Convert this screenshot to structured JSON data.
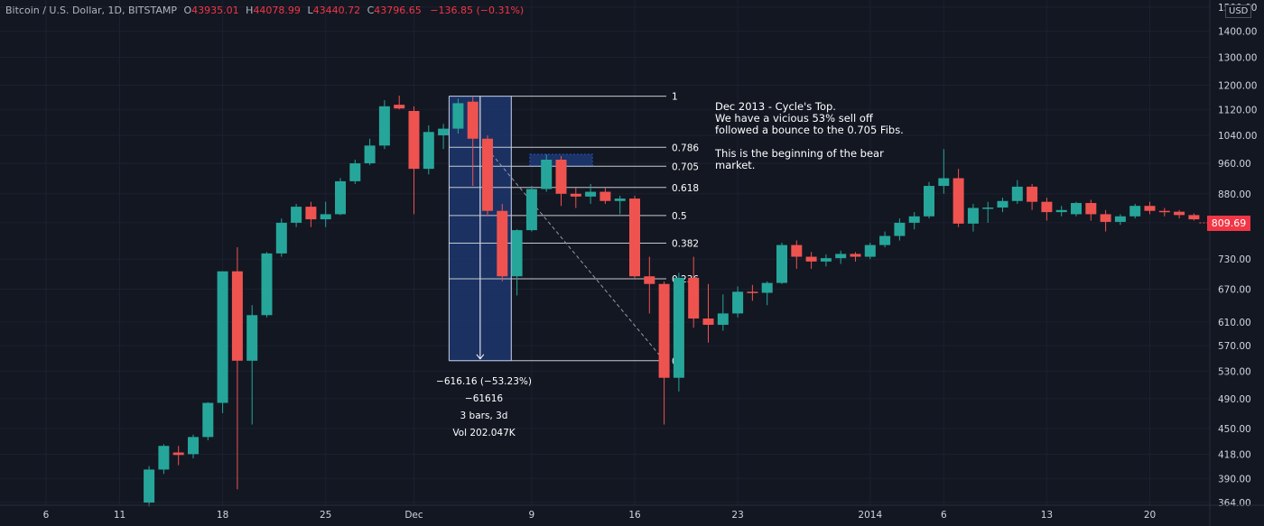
{
  "header": {
    "symbol": "Bitcoin / U.S. Dollar, 1D, BITSTAMP",
    "open_label": "O",
    "open": "43935.01",
    "high_label": "H",
    "high": "44078.99",
    "low_label": "L",
    "low": "43440.72",
    "close_label": "C",
    "close": "43796.65",
    "change": "−136.85 (−0.31%)"
  },
  "currency_badge": "USD",
  "last_price_label": "809.69",
  "annotation": "Dec 2013 - Cycle's Top.\nWe have a vicious 53% sell off\nfollowed a bounce to the 0.705 Fibs.\n\nThis is the beginning of the bear\nmarket.",
  "measurement": {
    "change": "−616.16 (−53.23%) −61616",
    "bars": "3 bars, 3d",
    "volume": "Vol 202.047K"
  },
  "colors": {
    "background": "#131722",
    "up": "#26a69a",
    "down": "#ef5350",
    "fib_line": "#c8cacf",
    "measure_fill": "#1e3a78",
    "grid": "#1c2030"
  },
  "chart_data": {
    "type": "candlestick",
    "y_scale": "log",
    "ylim": [
      364,
      1500
    ],
    "y_ticks": [
      364,
      390,
      418,
      450,
      490,
      530,
      570,
      610,
      670,
      730,
      810,
      880,
      960,
      1040,
      1120,
      1200,
      1300,
      1400,
      1500
    ],
    "y_tick_labels": [
      "364.00",
      "390.00",
      "418.00",
      "450.00",
      "490.00",
      "530.00",
      "570.00",
      "610.00",
      "670.00",
      "730.00",
      "810.00",
      "880.00",
      "960.00",
      "1040.00",
      "1120.00",
      "1200.00",
      "1300.00",
      "1400.00",
      "1500.00"
    ],
    "x_ticks": [
      {
        "label": "6",
        "date": "2013-11-06"
      },
      {
        "label": "11",
        "date": "2013-11-11"
      },
      {
        "label": "18",
        "date": "2013-11-18"
      },
      {
        "label": "25",
        "date": "2013-11-25"
      },
      {
        "label": "Dec",
        "date": "2013-12-01"
      },
      {
        "label": "9",
        "date": "2013-12-09"
      },
      {
        "label": "16",
        "date": "2013-12-16"
      },
      {
        "label": "23",
        "date": "2013-12-23"
      },
      {
        "label": "2014",
        "date": "2014-01-01"
      },
      {
        "label": "6",
        "date": "2014-01-06"
      },
      {
        "label": "13",
        "date": "2014-01-13"
      },
      {
        "label": "20",
        "date": "2014-01-20"
      }
    ],
    "candles": [
      {
        "date": "2013-11-13",
        "o": 364,
        "h": 404,
        "l": 360,
        "c": 400
      },
      {
        "date": "2013-11-14",
        "o": 400,
        "h": 430,
        "l": 395,
        "c": 428
      },
      {
        "date": "2013-11-15",
        "o": 420,
        "h": 428,
        "l": 405,
        "c": 417
      },
      {
        "date": "2013-11-16",
        "o": 418,
        "h": 442,
        "l": 413,
        "c": 439
      },
      {
        "date": "2013-11-17",
        "o": 439,
        "h": 485,
        "l": 435,
        "c": 484
      },
      {
        "date": "2013-11-18",
        "o": 484,
        "h": 705,
        "l": 470,
        "c": 705
      },
      {
        "date": "2013-11-19",
        "o": 705,
        "h": 755,
        "l": 378,
        "c": 546
      },
      {
        "date": "2013-11-20",
        "o": 546,
        "h": 640,
        "l": 455,
        "c": 622
      },
      {
        "date": "2013-11-21",
        "o": 622,
        "h": 745,
        "l": 618,
        "c": 742
      },
      {
        "date": "2013-11-22",
        "o": 742,
        "h": 820,
        "l": 735,
        "c": 810
      },
      {
        "date": "2013-11-23",
        "o": 810,
        "h": 855,
        "l": 800,
        "c": 848
      },
      {
        "date": "2013-11-24",
        "o": 848,
        "h": 860,
        "l": 800,
        "c": 818
      },
      {
        "date": "2013-11-25",
        "o": 818,
        "h": 860,
        "l": 800,
        "c": 830
      },
      {
        "date": "2013-11-26",
        "o": 830,
        "h": 920,
        "l": 828,
        "c": 912
      },
      {
        "date": "2013-11-27",
        "o": 912,
        "h": 970,
        "l": 905,
        "c": 960
      },
      {
        "date": "2013-11-28",
        "o": 960,
        "h": 1030,
        "l": 955,
        "c": 1010
      },
      {
        "date": "2013-11-29",
        "o": 1010,
        "h": 1150,
        "l": 1000,
        "c": 1130
      },
      {
        "date": "2013-11-30",
        "o": 1135,
        "h": 1165,
        "l": 1120,
        "c": 1123
      },
      {
        "date": "2013-12-01",
        "o": 1115,
        "h": 1130,
        "l": 830,
        "c": 945
      },
      {
        "date": "2013-12-02",
        "o": 945,
        "h": 1070,
        "l": 930,
        "c": 1050
      },
      {
        "date": "2013-12-03",
        "o": 1040,
        "h": 1075,
        "l": 1000,
        "c": 1060
      },
      {
        "date": "2013-12-04",
        "o": 1060,
        "h": 1155,
        "l": 1045,
        "c": 1140
      },
      {
        "date": "2013-12-05",
        "o": 1145,
        "h": 1160,
        "l": 900,
        "c": 1030
      },
      {
        "date": "2013-12-06",
        "o": 1030,
        "h": 1040,
        "l": 825,
        "c": 838
      },
      {
        "date": "2013-12-07",
        "o": 838,
        "h": 855,
        "l": 685,
        "c": 695
      },
      {
        "date": "2013-12-08",
        "o": 695,
        "h": 795,
        "l": 658,
        "c": 793
      },
      {
        "date": "2013-12-09",
        "o": 793,
        "h": 900,
        "l": 790,
        "c": 892
      },
      {
        "date": "2013-12-10",
        "o": 892,
        "h": 985,
        "l": 885,
        "c": 970
      },
      {
        "date": "2013-12-11",
        "o": 970,
        "h": 980,
        "l": 850,
        "c": 880
      },
      {
        "date": "2013-12-12",
        "o": 880,
        "h": 895,
        "l": 845,
        "c": 873
      },
      {
        "date": "2013-12-13",
        "o": 873,
        "h": 905,
        "l": 855,
        "c": 885
      },
      {
        "date": "2013-12-14",
        "o": 885,
        "h": 895,
        "l": 855,
        "c": 862
      },
      {
        "date": "2013-12-15",
        "o": 862,
        "h": 875,
        "l": 830,
        "c": 868
      },
      {
        "date": "2013-12-16",
        "o": 868,
        "h": 875,
        "l": 690,
        "c": 695
      },
      {
        "date": "2013-12-17",
        "o": 695,
        "h": 735,
        "l": 625,
        "c": 680
      },
      {
        "date": "2013-12-18",
        "o": 680,
        "h": 685,
        "l": 455,
        "c": 520
      },
      {
        "date": "2013-12-19",
        "o": 520,
        "h": 702,
        "l": 500,
        "c": 692
      },
      {
        "date": "2013-12-20",
        "o": 692,
        "h": 735,
        "l": 600,
        "c": 616
      },
      {
        "date": "2013-12-21",
        "o": 616,
        "h": 680,
        "l": 575,
        "c": 605
      },
      {
        "date": "2013-12-22",
        "o": 605,
        "h": 660,
        "l": 595,
        "c": 625
      },
      {
        "date": "2013-12-23",
        "o": 625,
        "h": 675,
        "l": 618,
        "c": 665
      },
      {
        "date": "2013-12-24",
        "o": 665,
        "h": 678,
        "l": 648,
        "c": 663
      },
      {
        "date": "2013-12-25",
        "o": 663,
        "h": 685,
        "l": 640,
        "c": 682
      },
      {
        "date": "2013-12-26",
        "o": 682,
        "h": 765,
        "l": 680,
        "c": 760
      },
      {
        "date": "2013-12-27",
        "o": 760,
        "h": 770,
        "l": 710,
        "c": 735
      },
      {
        "date": "2013-12-28",
        "o": 735,
        "h": 745,
        "l": 710,
        "c": 725
      },
      {
        "date": "2013-12-29",
        "o": 725,
        "h": 740,
        "l": 715,
        "c": 732
      },
      {
        "date": "2013-12-30",
        "o": 732,
        "h": 748,
        "l": 720,
        "c": 741
      },
      {
        "date": "2013-12-31",
        "o": 741,
        "h": 745,
        "l": 725,
        "c": 735
      },
      {
        "date": "2014-01-01",
        "o": 735,
        "h": 765,
        "l": 730,
        "c": 760
      },
      {
        "date": "2014-01-02",
        "o": 760,
        "h": 790,
        "l": 755,
        "c": 780
      },
      {
        "date": "2014-01-03",
        "o": 780,
        "h": 820,
        "l": 770,
        "c": 810
      },
      {
        "date": "2014-01-04",
        "o": 810,
        "h": 835,
        "l": 795,
        "c": 825
      },
      {
        "date": "2014-01-05",
        "o": 825,
        "h": 910,
        "l": 820,
        "c": 900
      },
      {
        "date": "2014-01-06",
        "o": 900,
        "h": 1000,
        "l": 880,
        "c": 920
      },
      {
        "date": "2014-01-07",
        "o": 920,
        "h": 945,
        "l": 800,
        "c": 808
      },
      {
        "date": "2014-01-08",
        "o": 808,
        "h": 855,
        "l": 790,
        "c": 845
      },
      {
        "date": "2014-01-09",
        "o": 845,
        "h": 860,
        "l": 810,
        "c": 846
      },
      {
        "date": "2014-01-10",
        "o": 846,
        "h": 870,
        "l": 835,
        "c": 862
      },
      {
        "date": "2014-01-11",
        "o": 862,
        "h": 915,
        "l": 855,
        "c": 898
      },
      {
        "date": "2014-01-12",
        "o": 898,
        "h": 905,
        "l": 840,
        "c": 860
      },
      {
        "date": "2014-01-13",
        "o": 860,
        "h": 870,
        "l": 815,
        "c": 835
      },
      {
        "date": "2014-01-14",
        "o": 835,
        "h": 850,
        "l": 825,
        "c": 840
      },
      {
        "date": "2014-01-15",
        "o": 830,
        "h": 860,
        "l": 825,
        "c": 857
      },
      {
        "date": "2014-01-16",
        "o": 857,
        "h": 865,
        "l": 815,
        "c": 830
      },
      {
        "date": "2014-01-17",
        "o": 830,
        "h": 840,
        "l": 790,
        "c": 812
      },
      {
        "date": "2014-01-18",
        "o": 812,
        "h": 830,
        "l": 805,
        "c": 825
      },
      {
        "date": "2014-01-19",
        "o": 825,
        "h": 855,
        "l": 820,
        "c": 850
      },
      {
        "date": "2014-01-20",
        "o": 850,
        "h": 860,
        "l": 830,
        "c": 838
      },
      {
        "date": "2014-01-21",
        "o": 838,
        "h": 845,
        "l": 825,
        "c": 836
      },
      {
        "date": "2014-01-22",
        "o": 836,
        "h": 840,
        "l": 820,
        "c": 828
      },
      {
        "date": "2014-01-23",
        "o": 828,
        "h": 832,
        "l": 815,
        "c": 818
      }
    ],
    "fib_levels": [
      {
        "label": "1",
        "price": 1163
      },
      {
        "label": "0.786",
        "price": 1005
      },
      {
        "label": "0.705",
        "price": 952
      },
      {
        "label": "0.618",
        "price": 896
      },
      {
        "label": "0.5",
        "price": 827
      },
      {
        "label": "0.382",
        "price": 764
      },
      {
        "label": "0.236",
        "price": 690
      },
      {
        "label": "0",
        "price": 546
      }
    ],
    "fib_range_dates": [
      "2013-12-04",
      "2013-12-18"
    ],
    "measure_range": {
      "from": "2013-12-04",
      "to": "2013-12-07",
      "high": 1163,
      "low": 546
    },
    "highlight_zone": {
      "from": "2013-12-09",
      "to": "2013-12-13",
      "low": 952,
      "high": 985
    },
    "trend_line": [
      {
        "date": "2013-12-06",
        "price": 1000
      },
      {
        "date": "2013-12-18",
        "price": 546
      }
    ]
  }
}
